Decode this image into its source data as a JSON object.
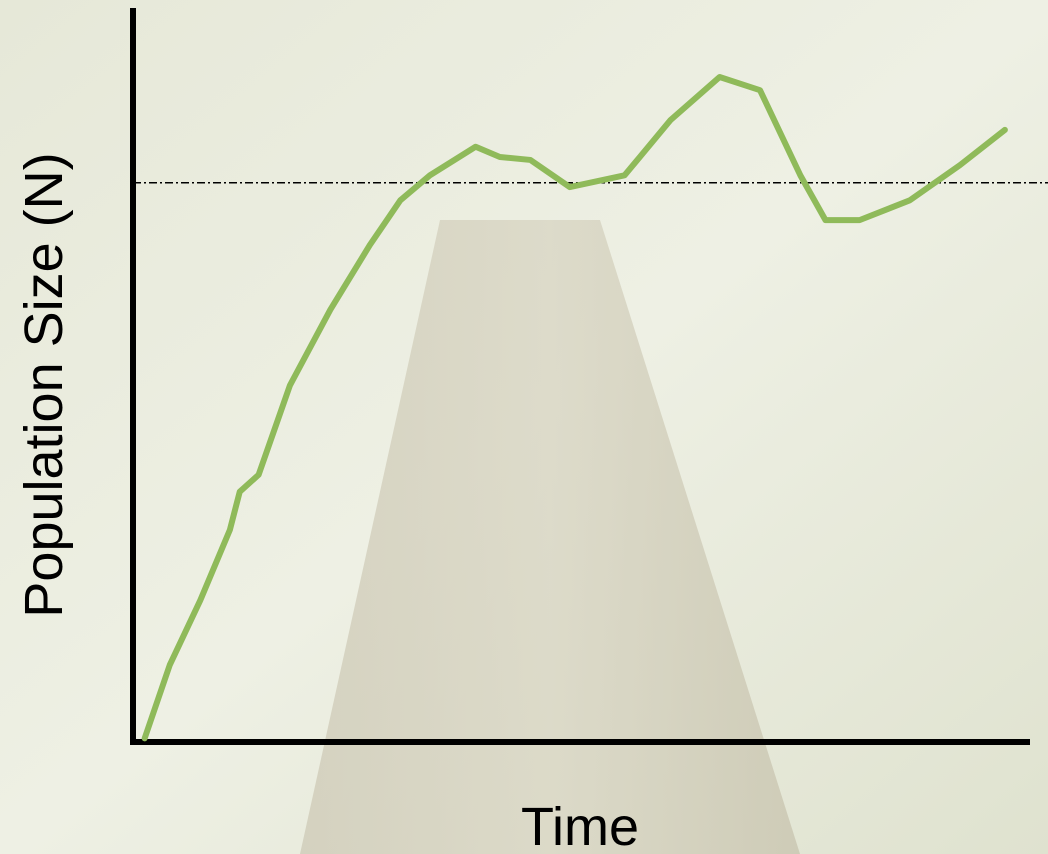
{
  "chart_data": {
    "type": "line",
    "x_label": "Time",
    "y_label": "Population Size (N)",
    "x": [
      1.3,
      4.1,
      7.5,
      10.8,
      11.9,
      14.0,
      17.5,
      22.0,
      26.4,
      29.8,
      33.1,
      38.2,
      40.9,
      44.3,
      48.7,
      54.8,
      59.9,
      65.4,
      69.9,
      74.4,
      77.2,
      81.0,
      86.6,
      92.2,
      97.2
    ],
    "series": [
      {
        "color": "#8fba5a",
        "values": [
          0.5,
          10.5,
          19.3,
          28.9,
          34.1,
          36.4,
          48.6,
          58.9,
          67.7,
          73.8,
          77.2,
          81.1,
          79.7,
          79.3,
          75.6,
          77.2,
          84.7,
          90.6,
          88.8,
          77.2,
          71.1,
          71.1,
          73.8,
          78.6,
          83.4
        ]
      }
    ],
    "reference_line": {
      "value": 76.2,
      "color": "#000000"
    },
    "xlim": [
      0,
      100
    ],
    "ylim": [
      0,
      100
    ]
  }
}
